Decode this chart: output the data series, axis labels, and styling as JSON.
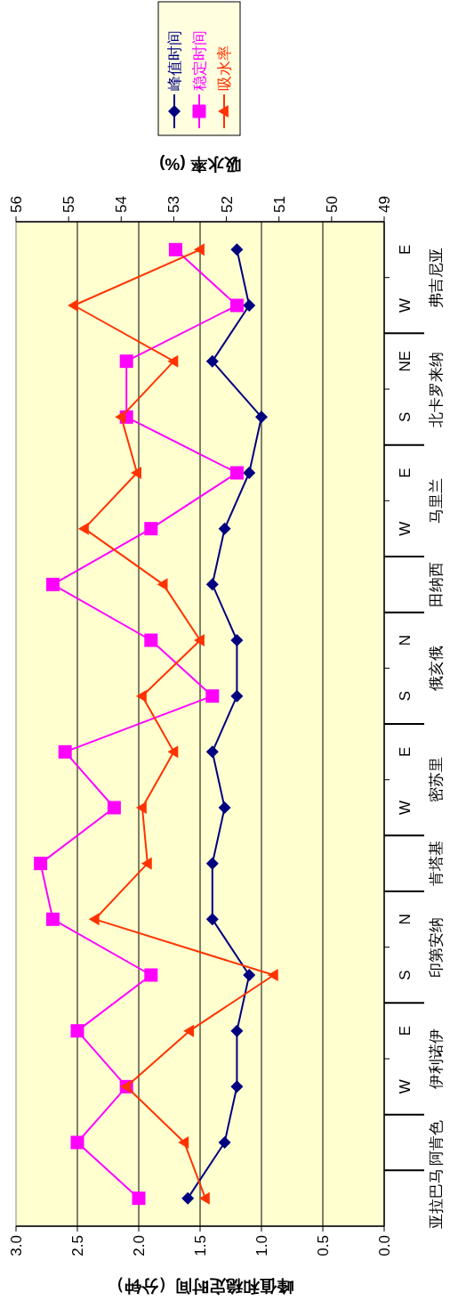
{
  "chart_data": {
    "type": "line",
    "orientation": "horizontal",
    "categories": [
      "E",
      "W",
      "NE",
      "S",
      "E",
      "W",
      null,
      "N",
      "S",
      "E",
      "W",
      null,
      "N",
      "S",
      "E",
      "W",
      null,
      null
    ],
    "annotations": [
      "弗吉尼亚",
      "北卡罗来纳",
      "马里兰",
      "田纳西",
      "俄亥俄",
      "密苏里",
      "肯塔基",
      "印第安纳",
      "伊利诺伊",
      "阿肯色",
      "亚拉巴马"
    ],
    "xlabel": "峰值和稳定时间（分钟）",
    "x2label": "吸水率 (%)",
    "xlim": [
      3,
      0
    ],
    "xticks": [
      {
        "value": 3,
        "label": "3.0"
      },
      {
        "value": 2.5,
        "label": "2.5"
      },
      {
        "value": 2,
        "label": "2.0"
      },
      {
        "value": 1.5,
        "label": "1.5"
      },
      {
        "value": 1,
        "label": "1.0"
      },
      {
        "value": 0.5,
        "label": "0.5"
      },
      {
        "value": 0,
        "label": "0.0"
      }
    ],
    "x2lim": [
      56,
      49
    ],
    "x2ticks": [
      56,
      55,
      54,
      53,
      52,
      51,
      50,
      49
    ],
    "grid": "x",
    "legend": "top right",
    "series": [
      {
        "name": "峰值时间",
        "color": "#000080",
        "marker": "diamond",
        "values": [
          1.2,
          1.1,
          1.4,
          1.0,
          1.1,
          1.3,
          1.4,
          1.2,
          1.2,
          1.4,
          1.3,
          1.4,
          1.4,
          1.1,
          1.2,
          1.2,
          1.3,
          1.6
        ]
      },
      {
        "name": "稳定时间",
        "color": "#ff00ff",
        "marker": "square",
        "values": [
          1.7,
          1.2,
          2.1,
          2.1,
          1.2,
          1.9,
          2.7,
          1.9,
          1.4,
          2.6,
          2.2,
          2.8,
          2.7,
          1.9,
          2.5,
          2.1,
          2.5,
          2.0
        ]
      },
      {
        "name": "吸水率",
        "color": "#ff3300",
        "marker": "triangle",
        "axis": "x2",
        "values": [
          52.5,
          54.9,
          53.0,
          54.0,
          53.7,
          54.7,
          53.2,
          52.5,
          53.6,
          53.0,
          53.6,
          53.5,
          54.5,
          51.1,
          52.7,
          53.9,
          52.8,
          52.4
        ]
      }
    ]
  }
}
